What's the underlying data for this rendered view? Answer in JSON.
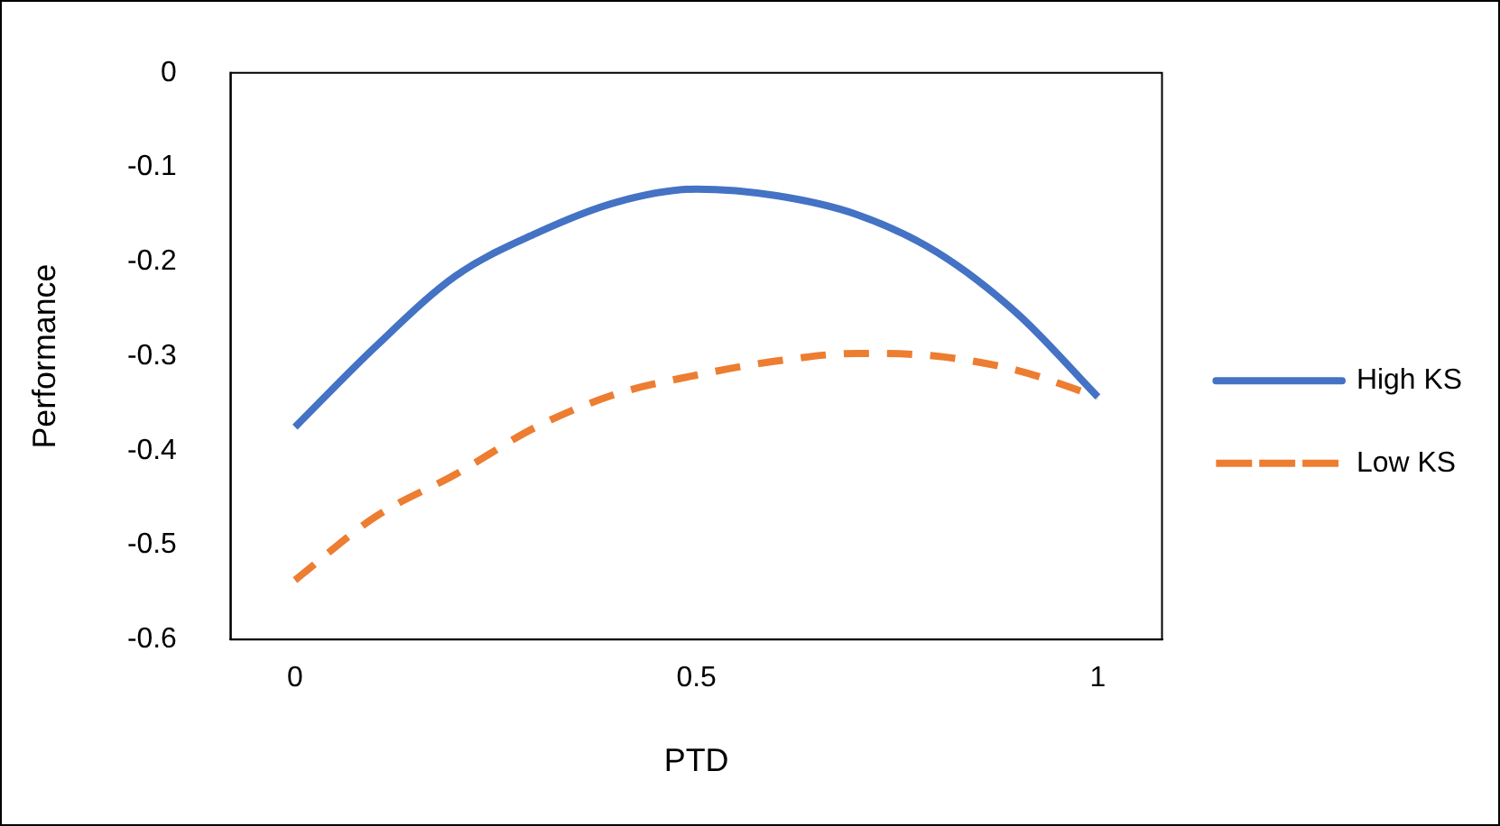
{
  "chart_data": {
    "type": "line",
    "xlabel": "PTD",
    "ylabel": "Performance",
    "x": [
      0,
      0.1,
      0.2,
      0.3,
      0.4,
      0.5,
      0.6,
      0.7,
      0.8,
      0.9,
      1
    ],
    "xlim": [
      -0.08,
      1.08
    ],
    "xticks": [
      0,
      0.5,
      1
    ],
    "ylim": [
      -0.6,
      0
    ],
    "yticks": [
      0,
      -0.1,
      -0.2,
      -0.3,
      -0.4,
      -0.5,
      -0.6
    ],
    "grid": false,
    "legend": "right",
    "marker": "none",
    "series": [
      {
        "name": "High KS",
        "color": "#4472c4",
        "line_style": "solid",
        "values": [
          -0.375,
          -0.29,
          -0.215,
          -0.17,
          -0.137,
          -0.123,
          -0.13,
          -0.15,
          -0.19,
          -0.255,
          -0.343
        ]
      },
      {
        "name": "Low KS",
        "color": "#ed7d31",
        "line_style": "dashed",
        "values": [
          -0.537,
          -0.47,
          -0.425,
          -0.375,
          -0.34,
          -0.32,
          -0.305,
          -0.297,
          -0.3,
          -0.315,
          -0.343
        ]
      }
    ]
  }
}
